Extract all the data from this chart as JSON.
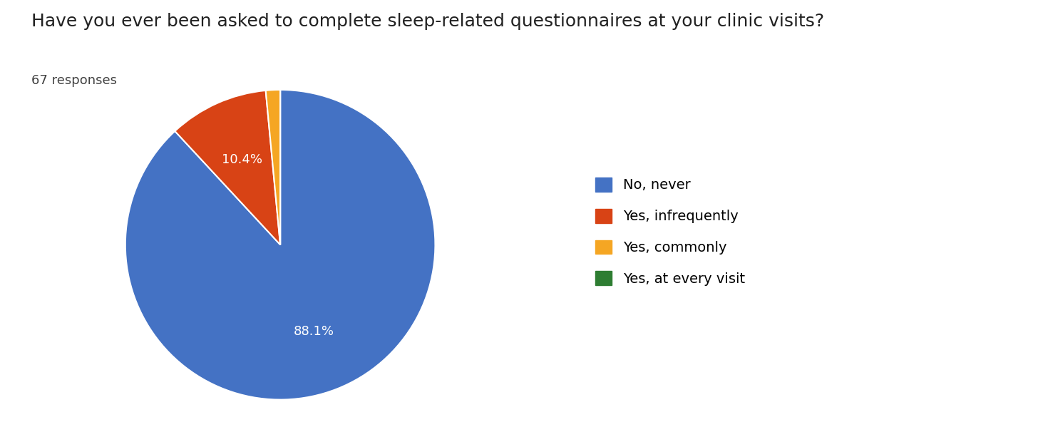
{
  "title": "Have you ever been asked to complete sleep-related questionnaires at your clinic visits?",
  "subtitle": "67 responses",
  "labels": [
    "No, never",
    "Yes, infrequently",
    "Yes, commonly",
    "Yes, at every visit"
  ],
  "values": [
    88.1,
    10.4,
    1.5,
    0.0
  ],
  "colors": [
    "#4472C4",
    "#D84315",
    "#F5A623",
    "#2E7D32"
  ],
  "title_fontsize": 18,
  "subtitle_fontsize": 13,
  "legend_fontsize": 14,
  "autopct_fontsize": 13,
  "background_color": "#ffffff"
}
